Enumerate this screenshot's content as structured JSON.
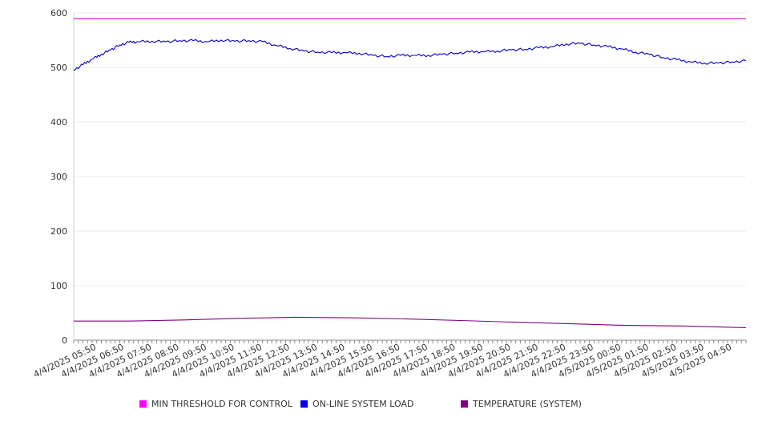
{
  "chart_data": {
    "type": "line",
    "ylim": [
      0,
      600
    ],
    "yticks": [
      0,
      100,
      200,
      300,
      400,
      500,
      600
    ],
    "xlim": [
      "4/4/2025 05:00",
      "4/5/2025 05:20"
    ],
    "x_tick_labels": [
      "4/4/2025 05:50",
      "4/4/2025 06:50",
      "4/4/2025 07:50",
      "4/4/2025 08:50",
      "4/4/2025 09:50",
      "4/4/2025 10:50",
      "4/4/2025 11:50",
      "4/4/2025 12:50",
      "4/4/2025 13:50",
      "4/4/2025 14:50",
      "4/4/2025 15:50",
      "4/4/2025 16:50",
      "4/4/2025 17:50",
      "4/4/2025 18:50",
      "4/4/2025 19:50",
      "4/4/2025 20:50",
      "4/4/2025 21:50",
      "4/4/2025 22:50",
      "4/4/2025 23:50",
      "4/5/2025 00:50",
      "4/5/2025 01:50",
      "4/5/2025 02:50",
      "4/5/2025 03:50",
      "4/5/2025 04:50"
    ],
    "grid": true,
    "legend_position": "bottom",
    "series": [
      {
        "name": "MIN THRESHOLD FOR CONTROL",
        "color": "#cc00cc",
        "x": [
          "4/4/2025 05:00",
          "4/5/2025 05:20"
        ],
        "values": [
          589,
          589
        ]
      },
      {
        "name": "ON-LINE SYSTEM LOAD",
        "color": "#0000cc",
        "x": [
          "4/4/2025 05:00",
          "4/4/2025 05:20",
          "4/4/2025 05:40",
          "4/4/2025 06:00",
          "4/4/2025 06:20",
          "4/4/2025 06:40",
          "4/4/2025 07:00",
          "4/4/2025 07:20",
          "4/4/2025 07:50",
          "4/4/2025 08:20",
          "4/4/2025 08:50",
          "4/4/2025 09:20",
          "4/4/2025 09:50",
          "4/4/2025 10:20",
          "4/4/2025 10:50",
          "4/4/2025 11:20",
          "4/4/2025 11:50",
          "4/4/2025 12:20",
          "4/4/2025 12:50",
          "4/4/2025 13:20",
          "4/4/2025 13:50",
          "4/4/2025 14:20",
          "4/4/2025 14:50",
          "4/4/2025 15:20",
          "4/4/2025 15:50",
          "4/4/2025 16:20",
          "4/4/2025 16:50",
          "4/4/2025 17:20",
          "4/4/2025 17:50",
          "4/4/2025 18:20",
          "4/4/2025 18:50",
          "4/4/2025 19:20",
          "4/4/2025 19:50",
          "4/4/2025 20:20",
          "4/4/2025 20:50",
          "4/4/2025 21:20",
          "4/4/2025 21:50",
          "4/4/2025 22:20",
          "4/4/2025 22:50",
          "4/4/2025 23:20",
          "4/4/2025 23:50",
          "4/5/2025 00:20",
          "4/5/2025 00:50",
          "4/5/2025 01:20",
          "4/5/2025 01:50",
          "4/5/2025 02:20",
          "4/5/2025 02:50",
          "4/5/2025 03:20",
          "4/5/2025 03:50",
          "4/5/2025 04:20",
          "4/5/2025 04:50",
          "4/5/2025 05:20"
        ],
        "values": [
          495,
          505,
          515,
          524,
          532,
          541,
          546,
          547,
          548,
          547,
          549,
          549,
          547,
          550,
          548,
          549,
          547,
          540,
          535,
          530,
          528,
          527,
          527,
          526,
          522,
          520,
          522,
          522,
          522,
          524,
          526,
          528,
          529,
          530,
          532,
          533,
          536,
          538,
          543,
          544,
          541,
          538,
          534,
          528,
          524,
          518,
          514,
          510,
          508,
          508,
          510,
          512
        ]
      },
      {
        "name": "TEMPERATURE (SYSTEM)",
        "color": "#800080",
        "x": [
          "4/4/2025 05:00",
          "4/4/2025 07:00",
          "4/4/2025 09:00",
          "4/4/2025 11:00",
          "4/4/2025 13:00",
          "4/4/2025 15:00",
          "4/4/2025 17:00",
          "4/4/2025 19:00",
          "4/4/2025 21:00",
          "4/4/2025 23:00",
          "4/5/2025 01:00",
          "4/5/2025 03:00",
          "4/5/2025 05:20"
        ],
        "values": [
          35,
          35,
          37,
          40,
          42,
          41,
          39,
          36,
          33,
          30,
          27,
          26,
          23
        ]
      }
    ]
  }
}
